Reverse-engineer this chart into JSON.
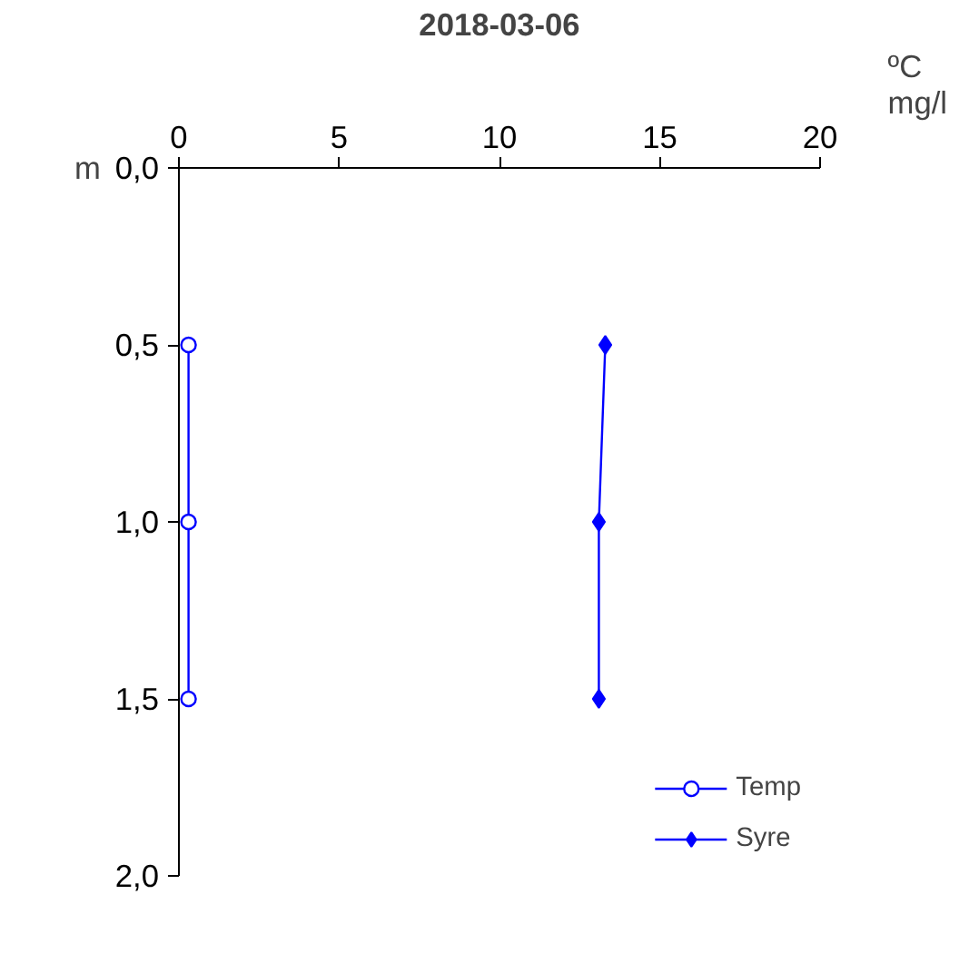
{
  "chart_data": {
    "type": "line",
    "title": "2018-03-06",
    "xlabel": "ºC\nmg/l",
    "ylabel": "m",
    "xlim": [
      0,
      20
    ],
    "xticks": [
      0,
      5,
      10,
      15,
      20
    ],
    "ylim": [
      2,
      0
    ],
    "yticks": [
      {
        "value": 0,
        "label": "0,0"
      },
      {
        "value": 0.5,
        "label": "0,5"
      },
      {
        "value": 1,
        "label": "1,0"
      },
      {
        "value": 1.5,
        "label": "1,5"
      },
      {
        "value": 2,
        "label": "2,0"
      }
    ],
    "series": [
      {
        "name": "Temp",
        "color": "#0000ff",
        "marker": "circle",
        "x": [
          0.3,
          0.3,
          0.3
        ],
        "values": [
          0.5,
          1.0,
          1.5
        ]
      },
      {
        "name": "Syre",
        "color": "#0000ff",
        "marker": "diamond",
        "x": [
          13.3,
          13.1,
          13.1
        ],
        "values": [
          0.5,
          1.0,
          1.5
        ]
      }
    ],
    "grid": false,
    "legend": "bottom right"
  }
}
